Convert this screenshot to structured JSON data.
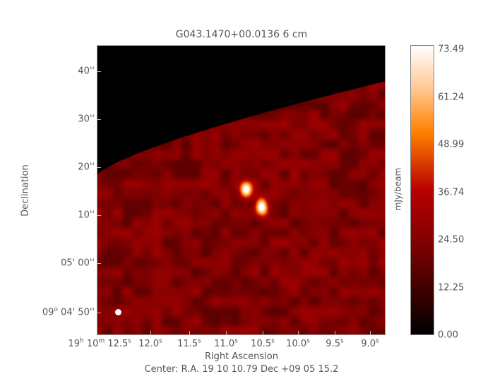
{
  "chart_data": {
    "type": "heatmap",
    "title": "G043.1470+00.0136 6 cm",
    "xlabel": "Right Ascension",
    "ylabel": "Declination",
    "x_ticks": [
      {
        "main": "19",
        "u1": "h",
        "main2": " 10",
        "u2": "m",
        "sub": " 12.5",
        "u3": "s"
      },
      {
        "main": "12.0",
        "u1": "s"
      },
      {
        "main": "11.5",
        "u1": "s"
      },
      {
        "main": "11.0",
        "u1": "s"
      },
      {
        "main": "10.5",
        "u1": "s"
      },
      {
        "main": "10.0",
        "u1": "s"
      },
      {
        "main": "9.5",
        "u1": "s"
      },
      {
        "main": "9.0",
        "u1": "s"
      }
    ],
    "y_ticks": [
      "40''",
      "30''",
      "20''",
      "10''",
      "05' 00''",
      "04' 50''"
    ],
    "y_tick_prefix": "09",
    "y_tick_prefix_unit": "o",
    "colorbar": {
      "label": "mJy/beam",
      "ticks": [
        "73.49",
        "61.24",
        "48.99",
        "36.74",
        "24.50",
        "12.25",
        "0.00"
      ],
      "range": [
        0.0,
        73.49
      ],
      "colormap": [
        "#000000",
        "#7a0000",
        "#b80000",
        "#ff8000",
        "#ffc890",
        "#ffffff"
      ]
    },
    "center_text": "Center:  R.A. 19 10 10.79     Dec  +09 05 15.2",
    "sources": [
      {
        "ra_s": 10.85,
        "dec_arcsec_offset": 15,
        "peak_mJy": 70
      },
      {
        "ra_s": 10.6,
        "dec_arcsec_offset": 11.5,
        "peak_mJy": 73
      }
    ],
    "beam_marker_color": "#ffffff"
  }
}
